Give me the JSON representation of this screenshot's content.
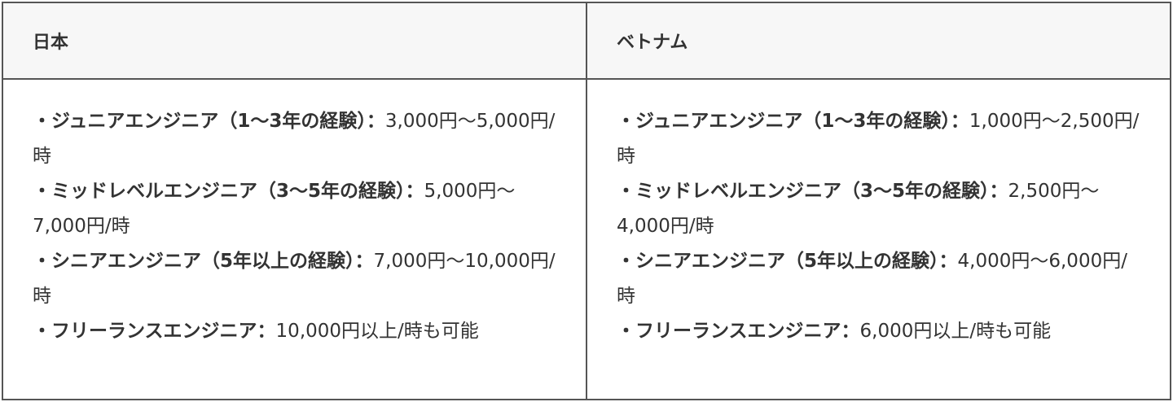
{
  "headers": [
    "日本",
    "ベトナム"
  ],
  "columns": [
    {
      "items": [
        {
          "label": "・ジュニアエンジニア（1〜3年の経験）：",
          "value": "3,000円〜5,000円/時"
        },
        {
          "label": "・ミッドレベルエンジニア（3〜5年の経験）：",
          "value": "5,000円〜7,000円/時"
        },
        {
          "label": "・シニアエンジニア（5年以上の経験）：",
          "value": "7,000円〜10,000円/時"
        },
        {
          "label": "・フリーランスエンジニア：",
          "value": "10,000円以上/時も可能"
        }
      ]
    },
    {
      "items": [
        {
          "label": "・ジュニアエンジニア（1〜3年の経験）：",
          "value": "1,000円〜2,500円/時"
        },
        {
          "label": "・ミッドレベルエンジニア（3〜5年の経験）：",
          "value": "2,500円〜4,000円/時"
        },
        {
          "label": "・シニアエンジニア（5年以上の経験）：",
          "value": "4,000円〜6,000円/時"
        },
        {
          "label": "・フリーランスエンジニア：",
          "value": "6,000円以上/時も可能"
        }
      ]
    }
  ]
}
